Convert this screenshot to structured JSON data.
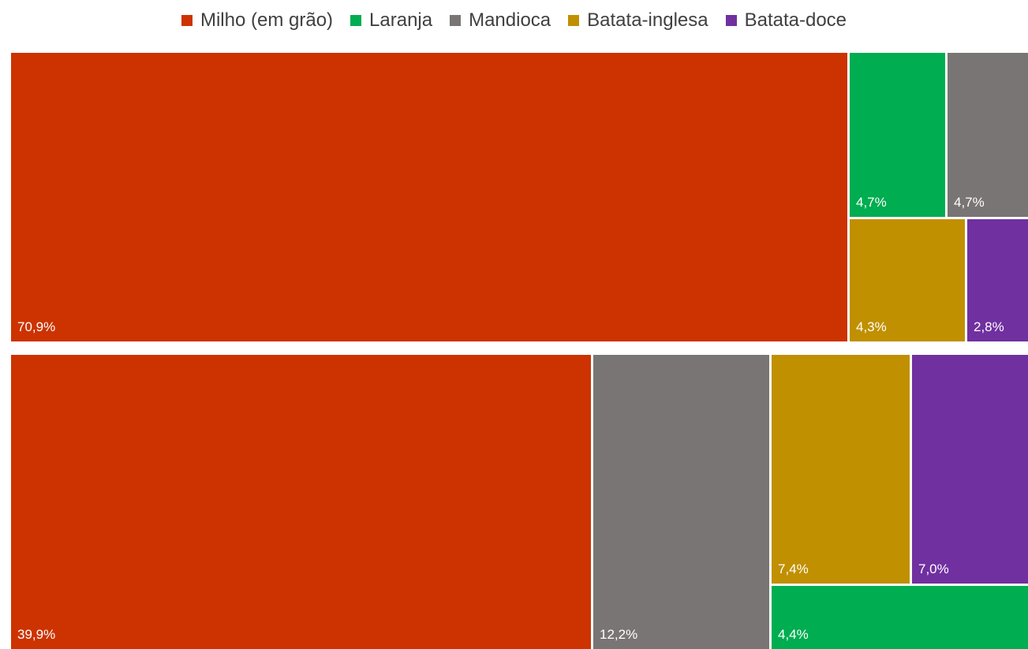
{
  "colors": {
    "milho": "#CC3300",
    "laranja": "#00AD50",
    "mandioca": "#787574",
    "batata_inglesa": "#C09000",
    "batata_doce": "#7030A0"
  },
  "legend": [
    {
      "label": "Milho (em grão)",
      "key": "milho"
    },
    {
      "label": "Laranja",
      "key": "laranja"
    },
    {
      "label": "Mandioca",
      "key": "mandioca"
    },
    {
      "label": "Batata-inglesa",
      "key": "batata_inglesa"
    },
    {
      "label": "Batata-doce",
      "key": "batata_doce"
    }
  ],
  "chart_data": [
    {
      "type": "treemap",
      "title": "",
      "items": [
        {
          "name": "Milho (em grão)",
          "key": "milho",
          "value": 70.9,
          "label": "70,9%"
        },
        {
          "name": "Laranja",
          "key": "laranja",
          "value": 4.7,
          "label": "4,7%"
        },
        {
          "name": "Mandioca",
          "key": "mandioca",
          "value": 4.7,
          "label": "4,7%"
        },
        {
          "name": "Batata-inglesa",
          "key": "batata_inglesa",
          "value": 4.3,
          "label": "4,3%"
        },
        {
          "name": "Batata-doce",
          "key": "batata_doce",
          "value": 2.8,
          "label": "2,8%"
        }
      ]
    },
    {
      "type": "treemap",
      "title": "",
      "items": [
        {
          "name": "Milho (em grão)",
          "key": "milho",
          "value": 39.9,
          "label": "39,9%"
        },
        {
          "name": "Mandioca",
          "key": "mandioca",
          "value": 12.2,
          "label": "12,2%"
        },
        {
          "name": "Batata-inglesa",
          "key": "batata_inglesa",
          "value": 7.4,
          "label": "7,4%"
        },
        {
          "name": "Batata-doce",
          "key": "batata_doce",
          "value": 7.0,
          "label": "7,0%"
        },
        {
          "name": "Laranja",
          "key": "laranja",
          "value": 4.4,
          "label": "4,4%"
        }
      ]
    }
  ]
}
